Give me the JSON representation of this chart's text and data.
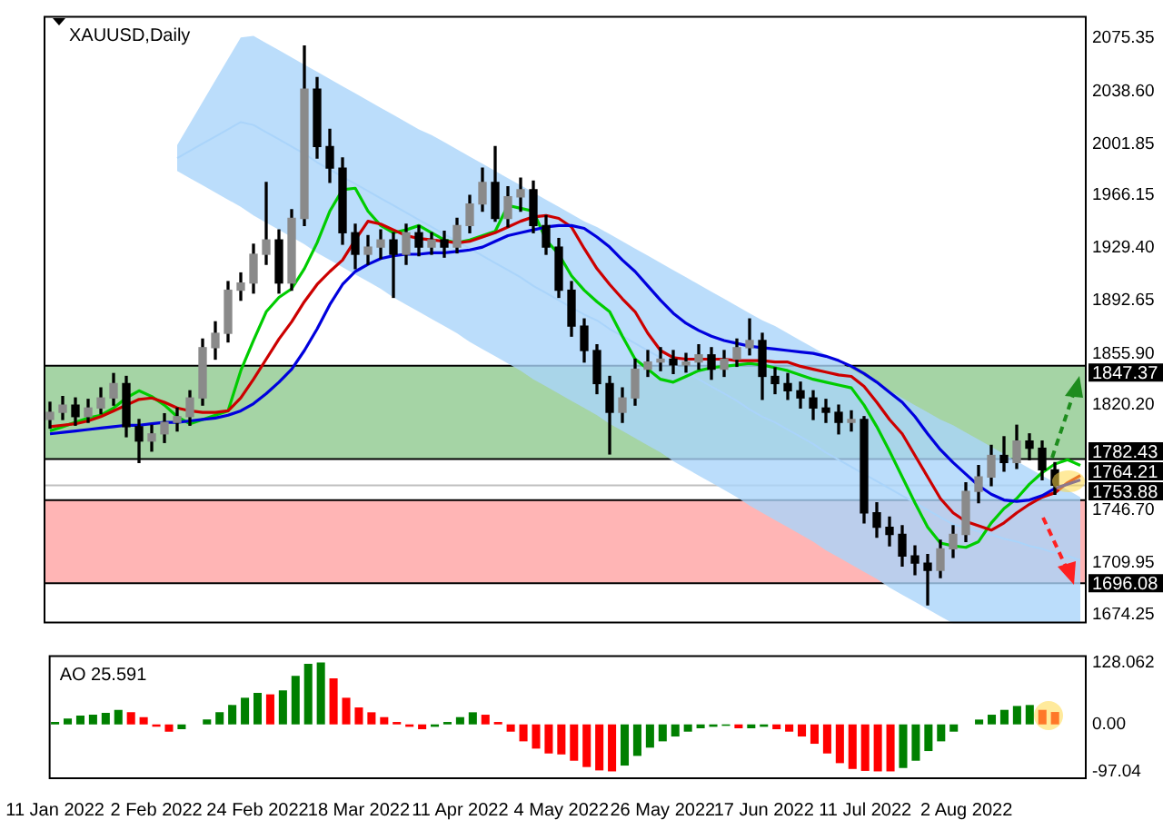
{
  "chart_data": [
    {
      "type": "candlestick",
      "title": "XAUUSD,Daily",
      "tick_labels": "y",
      "categories": [
        null,
        null,
        null,
        null,
        null,
        null,
        null,
        null,
        null,
        null,
        null,
        null,
        null,
        null,
        null,
        null,
        null,
        null,
        null,
        null,
        null,
        null,
        null,
        null,
        null,
        null,
        null,
        null,
        null,
        null,
        null,
        null,
        null,
        null,
        null,
        null,
        null,
        null,
        null,
        null,
        null,
        null,
        null,
        null,
        null,
        null,
        null,
        null,
        null,
        null,
        null,
        null,
        null,
        null,
        null,
        null,
        null,
        null,
        null,
        null,
        null,
        null,
        null,
        null,
        null,
        null,
        null,
        null,
        null,
        null,
        null,
        null,
        null,
        null,
        null,
        null,
        null,
        null,
        null,
        null,
        null,
        null
      ],
      "ohlc": [
        [
          1810,
          1822,
          1804,
          1815
        ],
        [
          1815,
          1826,
          1810,
          1820
        ],
        [
          1820,
          1825,
          1806,
          1812
        ],
        [
          1812,
          1824,
          1808,
          1818
        ],
        [
          1818,
          1832,
          1814,
          1825
        ],
        [
          1825,
          1842,
          1820,
          1835
        ],
        [
          1835,
          1840,
          1798,
          1805
        ],
        [
          1805,
          1810,
          1780,
          1795
        ],
        [
          1795,
          1806,
          1788,
          1800
        ],
        [
          1800,
          1814,
          1794,
          1808
        ],
        [
          1808,
          1818,
          1802,
          1812
        ],
        [
          1812,
          1830,
          1806,
          1825
        ],
        [
          1825,
          1866,
          1820,
          1860
        ],
        [
          1860,
          1878,
          1852,
          1870
        ],
        [
          1870,
          1906,
          1864,
          1900
        ],
        [
          1900,
          1912,
          1893,
          1905
        ],
        [
          1905,
          1932,
          1898,
          1925
        ],
        [
          1925,
          1975,
          1918,
          1935
        ],
        [
          1935,
          1942,
          1898,
          1905
        ],
        [
          1905,
          1956,
          1900,
          1950
        ],
        [
          1950,
          2070,
          1945,
          2040
        ],
        [
          2040,
          2048,
          1992,
          2000
        ],
        [
          2000,
          2012,
          1975,
          1985
        ],
        [
          1985,
          1992,
          1932,
          1940
        ],
        [
          1940,
          1946,
          1915,
          1925
        ],
        [
          1925,
          1938,
          1918,
          1930
        ],
        [
          1930,
          1942,
          1922,
          1935
        ],
        [
          1935,
          1940,
          1895,
          1925
        ],
        [
          1925,
          1946,
          1918,
          1940
        ],
        [
          1940,
          1945,
          1924,
          1930
        ],
        [
          1930,
          1940,
          1925,
          1935
        ],
        [
          1935,
          1941,
          1923,
          1930
        ],
        [
          1930,
          1950,
          1926,
          1945
        ],
        [
          1945,
          1966,
          1940,
          1960
        ],
        [
          1960,
          1985,
          1955,
          1975
        ],
        [
          1975,
          2000,
          1948,
          1950
        ],
        [
          1950,
          1972,
          1944,
          1965
        ],
        [
          1965,
          1978,
          1955,
          1970
        ],
        [
          1970,
          1976,
          1940,
          1945
        ],
        [
          1945,
          1952,
          1925,
          1930
        ],
        [
          1930,
          1936,
          1895,
          1900
        ],
        [
          1900,
          1906,
          1868,
          1875
        ],
        [
          1875,
          1880,
          1850,
          1858
        ],
        [
          1858,
          1862,
          1828,
          1835
        ],
        [
          1835,
          1840,
          1786,
          1815
        ],
        [
          1815,
          1832,
          1808,
          1825
        ],
        [
          1825,
          1852,
          1820,
          1845
        ],
        [
          1845,
          1858,
          1840,
          1850
        ],
        [
          1850,
          1860,
          1844,
          1852
        ],
        [
          1852,
          1858,
          1842,
          1848
        ],
        [
          1848,
          1856,
          1843,
          1850
        ],
        [
          1850,
          1862,
          1845,
          1855
        ],
        [
          1855,
          1860,
          1838,
          1845
        ],
        [
          1845,
          1858,
          1840,
          1852
        ],
        [
          1852,
          1866,
          1847,
          1860
        ],
        [
          1860,
          1880,
          1855,
          1865
        ],
        [
          1865,
          1870,
          1824,
          1840
        ],
        [
          1840,
          1846,
          1828,
          1835
        ],
        [
          1835,
          1842,
          1824,
          1830
        ],
        [
          1830,
          1836,
          1818,
          1825
        ],
        [
          1825,
          1830,
          1810,
          1818
        ],
        [
          1818,
          1824,
          1808,
          1815
        ],
        [
          1815,
          1820,
          1800,
          1808
        ],
        [
          1808,
          1816,
          1802,
          1810
        ],
        [
          1810,
          1812,
          1738,
          1745
        ],
        [
          1745,
          1752,
          1728,
          1735
        ],
        [
          1735,
          1742,
          1722,
          1730
        ],
        [
          1730,
          1736,
          1708,
          1715
        ],
        [
          1715,
          1722,
          1702,
          1710
        ],
        [
          1710,
          1716,
          1681,
          1705
        ],
        [
          1705,
          1726,
          1700,
          1720
        ],
        [
          1720,
          1736,
          1714,
          1730
        ],
        [
          1730,
          1766,
          1725,
          1760
        ],
        [
          1760,
          1778,
          1752,
          1770
        ],
        [
          1770,
          1792,
          1764,
          1785
        ],
        [
          1785,
          1798,
          1774,
          1780
        ],
        [
          1780,
          1806,
          1776,
          1795
        ],
        [
          1795,
          1800,
          1782,
          1790
        ],
        [
          1790,
          1795,
          1768,
          1775
        ],
        [
          1775,
          1780,
          1758,
          1764.21
        ],
        null,
        null
      ],
      "series": [
        {
          "type": "line",
          "color": "#0000dd",
          "values": [
            1800,
            1801,
            1802,
            1803,
            1804,
            1805,
            1806,
            1806,
            1807,
            1808,
            1808,
            1809,
            1810,
            1811,
            1813,
            1816,
            1821,
            1828,
            1836,
            1845,
            1858,
            1873,
            1890,
            1904,
            1913,
            1918,
            1922,
            1924,
            1925,
            1925,
            1926,
            1926,
            1927,
            1928,
            1930,
            1934,
            1938,
            1940,
            1942,
            1944,
            1945,
            1945,
            1943,
            1937,
            1930,
            1921,
            1913,
            1903,
            1893,
            1884,
            1877,
            1872,
            1868,
            1865,
            1863,
            1861,
            1860,
            1859,
            1858,
            1857,
            1856,
            1854,
            1851,
            1847,
            1842,
            1836,
            1829,
            1822,
            1812,
            1800,
            1789,
            1780,
            1772,
            1764,
            1758,
            1754,
            1753,
            1754,
            1757,
            1762,
            1765,
            1768
          ]
        },
        {
          "type": "line",
          "color": "#cc0000",
          "values": [
            1805,
            1806,
            1807,
            1809,
            1812,
            1816,
            1820,
            1824,
            1825,
            1822,
            1818,
            1816,
            1815,
            1815,
            1816,
            1825,
            1838,
            1852,
            1866,
            1878,
            1892,
            1904,
            1913,
            1921,
            1935,
            1948,
            1946,
            1942,
            1938,
            1936,
            1935,
            1934,
            1933,
            1934,
            1937,
            1940,
            1944,
            1948,
            1951,
            1952,
            1950,
            1944,
            1929,
            1915,
            1904,
            1894,
            1885,
            1870,
            1858,
            1853,
            1852,
            1852,
            1852,
            1852,
            1851,
            1851,
            1851,
            1850,
            1850,
            1847,
            1845,
            1843,
            1841,
            1840,
            1833,
            1822,
            1810,
            1800,
            1785,
            1770,
            1755,
            1745,
            1739,
            1736,
            1733,
            1738,
            1745,
            1751,
            1756,
            1759,
            1766,
            1771
          ]
        },
        {
          "type": "line",
          "color": "#aad4fa",
          "values": [
            null,
            null,
            null,
            null,
            null,
            null,
            null,
            null,
            null,
            null,
            1992,
            1997,
            2002,
            2007,
            2012,
            2017,
            2015,
            2010,
            2005,
            2000,
            1995,
            1989,
            1984,
            1979,
            1974,
            1969,
            1964,
            1959,
            1954,
            1949,
            1944,
            1939,
            1934,
            1929,
            1924,
            1919,
            1914,
            1909,
            1903,
            1898,
            1893,
            1888,
            1883,
            1879,
            1873,
            1868,
            1863,
            1858,
            1853,
            1848,
            1843,
            1838,
            1833,
            1828,
            1823,
            1817,
            1812,
            1808,
            1803,
            1798,
            1793,
            1787,
            1782,
            1777,
            1772,
            1767,
            1762,
            1757,
            1752,
            1747,
            1742,
            1737,
            1735,
            1732,
            1730,
            1727,
            1725,
            1722,
            1720,
            1717,
            1715,
            1712
          ],
          "upper": [
            null,
            null,
            null,
            null,
            null,
            null,
            null,
            null,
            null,
            null,
            2001,
            2016,
            2031,
            2046,
            2061,
            2076,
            2077,
            2072,
            2067,
            2062,
            2057,
            2052,
            2047,
            2042,
            2037,
            2032,
            2027,
            2022,
            2017,
            2012,
            2008,
            2003,
            1998,
            1993,
            1988,
            1983,
            1978,
            1973,
            1968,
            1963,
            1958,
            1953,
            1948,
            1944,
            1939,
            1934,
            1929,
            1924,
            1919,
            1914,
            1909,
            1904,
            1899,
            1894,
            1889,
            1884,
            1879,
            1875,
            1870,
            1865,
            1860,
            1855,
            1850,
            1845,
            1840,
            1835,
            1830,
            1825,
            1820,
            1815,
            1810,
            1806,
            1801,
            1796,
            1791,
            1786,
            1781,
            1776,
            1771,
            1766,
            1761,
            1756
          ],
          "lower": [
            null,
            null,
            null,
            null,
            null,
            null,
            null,
            null,
            null,
            null,
            1983,
            1978,
            1973,
            1968,
            1963,
            1958,
            1952,
            1947,
            1942,
            1937,
            1932,
            1926,
            1921,
            1916,
            1911,
            1906,
            1901,
            1895,
            1890,
            1885,
            1880,
            1875,
            1870,
            1864,
            1859,
            1854,
            1849,
            1844,
            1838,
            1833,
            1828,
            1823,
            1818,
            1813,
            1807,
            1802,
            1797,
            1792,
            1787,
            1781,
            1776,
            1771,
            1766,
            1761,
            1756,
            1750,
            1745,
            1740,
            1735,
            1730,
            1725,
            1719,
            1714,
            1709,
            1704,
            1699,
            1693,
            1688,
            1683,
            1678,
            1673,
            1668,
            1668,
            1668,
            1668,
            1668,
            1668,
            1668,
            1668,
            1668,
            1668,
            1668
          ]
        },
        {
          "type": "line",
          "color": "#00cc00",
          "values": [
            1802,
            1805,
            1808,
            1811,
            1813,
            1818,
            1825,
            1830,
            1826,
            1820,
            1812,
            1807,
            1810,
            1813,
            1816,
            1844,
            1865,
            1885,
            1895,
            1901,
            1915,
            1933,
            1955,
            1970,
            1971,
            1955,
            1945,
            1940,
            1942,
            1945,
            1940,
            1935,
            1933,
            1935,
            1938,
            1941,
            1959,
            1957,
            1955,
            1935,
            1925,
            1910,
            1900,
            1892,
            1885,
            1868,
            1852,
            1845,
            1838,
            1836,
            1840,
            1844,
            1846,
            1847,
            1848,
            1849,
            1848,
            1846,
            1844,
            1841,
            1838,
            1836,
            1834,
            1832,
            1820,
            1805,
            1788,
            1770,
            1752,
            1735,
            1724,
            1722,
            1721,
            1725,
            1738,
            1748,
            1755,
            1765,
            1773,
            1779,
            1782,
            1778
          ]
        }
      ],
      "ylim": [
        1668,
        2091
      ],
      "yticks": [
        2075.35,
        {
          "value": 2038.6,
          "label": "2038.60"
        },
        2001.85,
        1966.15,
        {
          "value": 1929.4,
          "label": "1929.40"
        },
        1892.65,
        {
          "value": 1855.9,
          "label": "1855.90"
        },
        {
          "value": 1820.2,
          "label": "1820.20"
        },
        {
          "value": 1746.7,
          "label": "1746.70"
        },
        1709.95,
        1674.25
      ],
      "bands": [
        {
          "axis": "y",
          "from": 1782.43,
          "to": 1847.37,
          "color": "#8fc98f"
        },
        {
          "axis": "y",
          "from": 1696.08,
          "to": 1753.88,
          "color": "#ffa3a3"
        }
      ],
      "ref_lines": [
        {
          "axis": "y",
          "value": 1847.37,
          "label": "1847.37",
          "color": "#000000"
        },
        {
          "axis": "y",
          "value": 1782.43,
          "label": "1782.43",
          "color": "#000000"
        },
        {
          "axis": "y",
          "value": 1764.21,
          "label": "1764.21",
          "color": "#c0c0c0"
        },
        {
          "axis": "y",
          "value": 1753.88,
          "label": "1753.88",
          "color": "#000000"
        },
        {
          "axis": "y",
          "value": 1696.08,
          "label": "1696.08",
          "color": "#000000"
        }
      ]
    },
    {
      "type": "bar",
      "title": "AO 25.591",
      "categories": [
        "11 Jan 2022",
        null,
        null,
        null,
        null,
        null,
        null,
        null,
        "2 Feb 2022",
        null,
        null,
        null,
        null,
        null,
        null,
        null,
        "24 Feb 2022",
        null,
        null,
        null,
        null,
        null,
        null,
        null,
        "18 Mar 2022",
        null,
        null,
        null,
        null,
        null,
        null,
        null,
        "11 Apr 2022",
        null,
        null,
        null,
        null,
        null,
        null,
        null,
        "4 May 2022",
        null,
        null,
        null,
        null,
        null,
        null,
        null,
        "26 May 2022",
        null,
        null,
        null,
        null,
        null,
        null,
        null,
        "17 Jun 2022",
        null,
        null,
        null,
        null,
        null,
        null,
        null,
        "11 Jul 2022",
        null,
        null,
        null,
        null,
        null,
        null,
        null,
        "2 Aug 2022",
        null,
        null,
        null,
        null,
        null,
        null,
        null,
        null,
        null
      ],
      "values": [
        5,
        12,
        18,
        20,
        24,
        30,
        25,
        15,
        -5,
        -15,
        -10,
        0,
        10,
        25,
        40,
        55,
        65,
        62,
        70,
        100,
        125,
        128,
        95,
        55,
        35,
        25,
        15,
        5,
        -5,
        -10,
        -5,
        5,
        15,
        25,
        20,
        5,
        -15,
        -35,
        -50,
        -60,
        -62,
        -75,
        -88,
        -95,
        -97,
        -85,
        -65,
        -48,
        -35,
        -25,
        -15,
        -8,
        -5,
        -3,
        -8,
        -8,
        -5,
        -10,
        -15,
        -25,
        -40,
        -60,
        -80,
        -92,
        -96,
        -97,
        -97,
        -90,
        -75,
        -55,
        -35,
        -15,
        0,
        10,
        20,
        30,
        38,
        40,
        30,
        25.591,
        null,
        null
      ],
      "colors": [
        "#008000",
        "#008000",
        "#008000",
        "#008000",
        "#008000",
        "#008000",
        "#ff0000",
        "#ff0000",
        "#ff0000",
        "#ff0000",
        "#008000",
        "#008000",
        "#008000",
        "#008000",
        "#008000",
        "#008000",
        "#008000",
        "#ff0000",
        "#008000",
        "#008000",
        "#008000",
        "#008000",
        "#ff0000",
        "#ff0000",
        "#ff0000",
        "#ff0000",
        "#ff0000",
        "#ff0000",
        "#ff0000",
        "#ff0000",
        "#008000",
        "#008000",
        "#008000",
        "#008000",
        "#ff0000",
        "#ff0000",
        "#ff0000",
        "#ff0000",
        "#ff0000",
        "#ff0000",
        "#ff0000",
        "#ff0000",
        "#ff0000",
        "#ff0000",
        "#ff0000",
        "#008000",
        "#008000",
        "#008000",
        "#008000",
        "#008000",
        "#008000",
        "#008000",
        "#008000",
        "#008000",
        "#ff0000",
        "#008000",
        "#008000",
        "#ff0000",
        "#ff0000",
        "#ff0000",
        "#ff0000",
        "#ff0000",
        "#ff0000",
        "#ff0000",
        "#ff0000",
        "#ff0000",
        "#ff0000",
        "#008000",
        "#008000",
        "#008000",
        "#008000",
        "#008000",
        "#008000",
        "#008000",
        "#008000",
        "#008000",
        "#008000",
        "#008000",
        "#ff0000",
        "#ff0000",
        null,
        null
      ],
      "ylim": [
        -113,
        143
      ],
      "yticks": [
        {
          "value": 128.062,
          "label": "128.062"
        },
        {
          "value": 0,
          "label": "0.00"
        },
        {
          "value": -97.04,
          "label": "-97.04"
        }
      ]
    }
  ]
}
